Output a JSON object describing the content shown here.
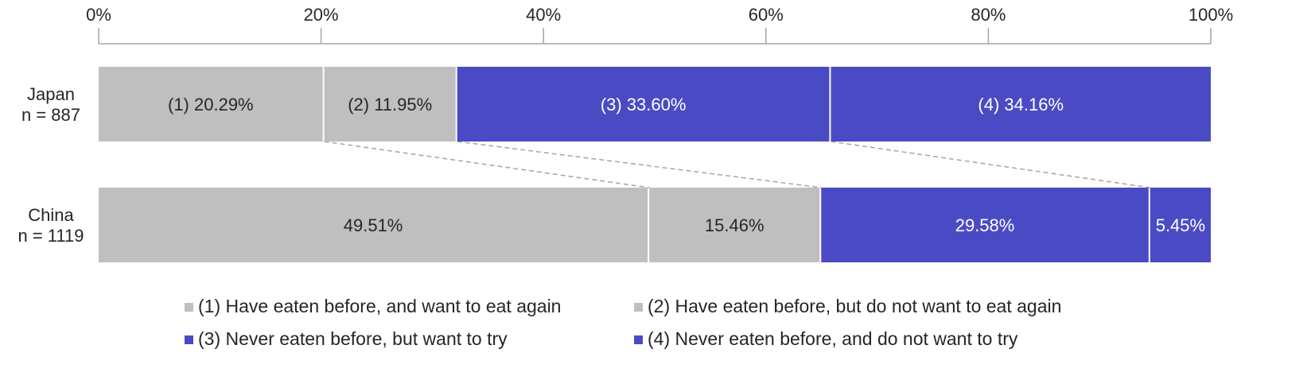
{
  "chart_data": {
    "type": "bar",
    "orientation": "horizontal",
    "stacked": "100%",
    "title": "",
    "xlabel": "",
    "ylabel": "",
    "xlim": [
      0,
      100
    ],
    "x_ticks": [
      "0%",
      "20%",
      "40%",
      "60%",
      "80%",
      "100%"
    ],
    "x_tick_values": [
      0,
      20,
      40,
      60,
      80,
      100
    ],
    "grid": false,
    "legend_position": "bottom",
    "categories": [
      {
        "line1": "Japan",
        "line2": "n = 887"
      },
      {
        "line1": "China",
        "line2": "n = 1119"
      }
    ],
    "series": [
      {
        "name": "(1) Have eaten before, and want to eat again",
        "color": "#bfbfbf",
        "text_color": "#262626",
        "values": [
          20.29,
          49.51
        ],
        "labels": [
          "(1) 20.29%",
          "49.51%"
        ]
      },
      {
        "name": "(2) Have eaten before, but do not want to eat again",
        "color": "#bfbfbf",
        "text_color": "#262626",
        "values": [
          11.95,
          15.46
        ],
        "labels": [
          "(2) 11.95%",
          "15.46%"
        ]
      },
      {
        "name": "(3) Never eaten before, but want to try",
        "color": "#4a4bc4",
        "text_color": "#ffffff",
        "values": [
          33.6,
          29.58
        ],
        "labels": [
          "(3) 33.60%",
          "29.58%"
        ]
      },
      {
        "name": "(4) Never eaten before, and do not want to try",
        "color": "#4a4bc4",
        "text_color": "#ffffff",
        "values": [
          34.16,
          5.45
        ],
        "labels": [
          "(4) 34.16%",
          "5.45%"
        ]
      }
    ],
    "connector_lines": true,
    "axis_color": "#a6a6a6",
    "connector_color": "#a6a6a6"
  }
}
